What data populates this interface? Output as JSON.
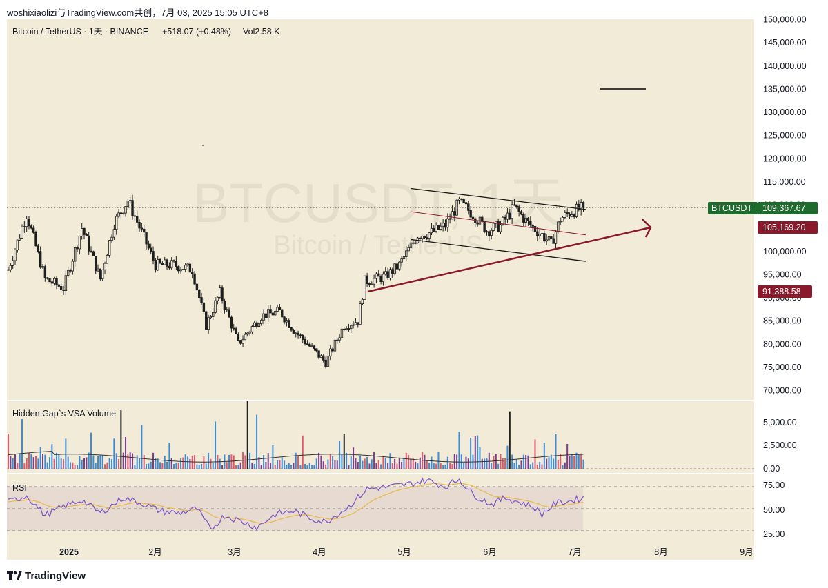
{
  "header": {
    "text": "woshixiaolizi与TradingView.com共创，7月 03, 2025 15:05 UTC+8"
  },
  "legend": {
    "symbol": "Bitcoin / TetherUS · 1天 · BINANCE",
    "change": "+518.07 (+0.48%)",
    "volume": "Vol2.58 K"
  },
  "watermark": {
    "line1": "BTCUSDT, 1天",
    "line2": "Bitcoin / TetherUS"
  },
  "price_tags": {
    "symbol_label": "BTCUSDT",
    "last_price": "109,367.67",
    "upper_level": "105,169.20",
    "lower_level": "91,388.58"
  },
  "volume_panel": {
    "title": "Hidden Gap`s VSA Volume",
    "ticks": [
      "5,000.00",
      "2,500.00",
      "0.00"
    ]
  },
  "rsi_panel": {
    "title": "RSI",
    "ticks": [
      "75.00",
      "50.00",
      "25.00"
    ]
  },
  "footer": {
    "brand": "TradingView"
  },
  "colors": {
    "background": "#f2ebd8",
    "bull": "#1f1f1f",
    "bear": "#1f1f1f",
    "trend_red": "#8a1a2b",
    "channel_black": "#1a1a1a",
    "last_price_tag": "#1e6b2e",
    "level_tag": "#8a1a2b",
    "rsi_line": "#7e57c2",
    "rsi_ma": "#e8b84a",
    "volume_blue": "#3d8bd4",
    "volume_red": "#e0566a",
    "volume_purple": "#7a3d8c"
  },
  "chart_data": {
    "type": "candlestick",
    "title": "Bitcoin / TetherUS · 1天 · BINANCE",
    "y_ticks": [
      "150,000.00",
      "145,000.00",
      "140,000.00",
      "135,000.00",
      "130,000.00",
      "125,000.00",
      "120,000.00",
      "115,000.00",
      "110,000.00",
      "105,000.00",
      "100,000.00",
      "95,000.00",
      "90,000.00",
      "85,000.00",
      "80,000.00",
      "75,000.00",
      "70,000.00"
    ],
    "x_ticks": [
      "2025",
      "2月",
      "3月",
      "4月",
      "5月",
      "6月",
      "7月",
      "8月",
      "9月"
    ],
    "ylim": [
      70000,
      150000
    ],
    "x_range_days": [
      0,
      265
    ],
    "key_points": [
      {
        "day": 0,
        "close": 96000
      },
      {
        "day": 8,
        "close": 108000
      },
      {
        "day": 16,
        "close": 94000
      },
      {
        "day": 24,
        "close": 92000
      },
      {
        "day": 32,
        "close": 105000
      },
      {
        "day": 40,
        "close": 94000
      },
      {
        "day": 46,
        "close": 106000
      },
      {
        "day": 52,
        "close": 111000
      },
      {
        "day": 58,
        "close": 104000
      },
      {
        "day": 64,
        "close": 97000
      },
      {
        "day": 72,
        "close": 97000
      },
      {
        "day": 80,
        "close": 96000
      },
      {
        "day": 86,
        "close": 84000
      },
      {
        "day": 92,
        "close": 91000
      },
      {
        "day": 100,
        "close": 80000
      },
      {
        "day": 110,
        "close": 86000
      },
      {
        "day": 118,
        "close": 87000
      },
      {
        "day": 124,
        "close": 83000
      },
      {
        "day": 134,
        "close": 78000
      },
      {
        "day": 138,
        "close": 76000
      },
      {
        "day": 146,
        "close": 84000
      },
      {
        "day": 152,
        "close": 85000
      },
      {
        "day": 155,
        "close": 93500
      },
      {
        "day": 164,
        "close": 94500
      },
      {
        "day": 170,
        "close": 97000
      },
      {
        "day": 178,
        "close": 103500
      },
      {
        "day": 184,
        "close": 104000
      },
      {
        "day": 190,
        "close": 105500
      },
      {
        "day": 196,
        "close": 110500
      },
      {
        "day": 202,
        "close": 108000
      },
      {
        "day": 208,
        "close": 104500
      },
      {
        "day": 214,
        "close": 105500
      },
      {
        "day": 220,
        "close": 109500
      },
      {
        "day": 226,
        "close": 106000
      },
      {
        "day": 232,
        "close": 103500
      },
      {
        "day": 236,
        "close": 101500
      },
      {
        "day": 240,
        "close": 107000
      },
      {
        "day": 245,
        "close": 108500
      },
      {
        "day": 250,
        "close": 109367.67
      }
    ],
    "annotations": {
      "last_price": 109367.67,
      "levels": [
        105169.2,
        91388.58
      ],
      "target_line": 135000,
      "uptrend_arrow": {
        "from": {
          "day": 156,
          "price": 92000
        },
        "to": {
          "day": 270,
          "price": 105200
        }
      },
      "channel_top": {
        "from": {
          "day": 175,
          "price": 113500
        },
        "to": {
          "day": 251,
          "price": 109000
        }
      },
      "channel_mid": {
        "from": {
          "day": 175,
          "price": 108500
        },
        "to": {
          "day": 251,
          "price": 103500
        }
      },
      "channel_bottom": {
        "from": {
          "day": 175,
          "price": 102500
        },
        "to": {
          "day": 251,
          "price": 97800
        }
      }
    },
    "volume_ylim": [
      0,
      6000
    ],
    "volume_spikes": [
      {
        "day": 6,
        "value": 4400
      },
      {
        "day": 49,
        "value": 5200
      },
      {
        "day": 58,
        "value": 3900
      },
      {
        "day": 90,
        "value": 4200
      },
      {
        "day": 104,
        "value": 6000
      },
      {
        "day": 108,
        "value": 4800
      },
      {
        "day": 146,
        "value": 3100
      },
      {
        "day": 218,
        "value": 5100
      }
    ],
    "rsi_ylim": [
      20,
      80
    ],
    "rsi_levels": [
      70,
      50,
      30
    ],
    "rsi_points": [
      {
        "day": 0,
        "v": 56
      },
      {
        "day": 8,
        "v": 62
      },
      {
        "day": 16,
        "v": 44
      },
      {
        "day": 24,
        "v": 52
      },
      {
        "day": 32,
        "v": 58
      },
      {
        "day": 40,
        "v": 46
      },
      {
        "day": 50,
        "v": 60
      },
      {
        "day": 58,
        "v": 55
      },
      {
        "day": 66,
        "v": 48
      },
      {
        "day": 74,
        "v": 46
      },
      {
        "day": 82,
        "v": 50
      },
      {
        "day": 88,
        "v": 31
      },
      {
        "day": 94,
        "v": 44
      },
      {
        "day": 102,
        "v": 38
      },
      {
        "day": 108,
        "v": 33
      },
      {
        "day": 116,
        "v": 45
      },
      {
        "day": 124,
        "v": 48
      },
      {
        "day": 132,
        "v": 41
      },
      {
        "day": 138,
        "v": 38
      },
      {
        "day": 148,
        "v": 52
      },
      {
        "day": 156,
        "v": 68
      },
      {
        "day": 166,
        "v": 70
      },
      {
        "day": 176,
        "v": 73
      },
      {
        "day": 182,
        "v": 76
      },
      {
        "day": 190,
        "v": 70
      },
      {
        "day": 196,
        "v": 77
      },
      {
        "day": 202,
        "v": 63
      },
      {
        "day": 210,
        "v": 54
      },
      {
        "day": 216,
        "v": 60
      },
      {
        "day": 222,
        "v": 56
      },
      {
        "day": 228,
        "v": 52
      },
      {
        "day": 232,
        "v": 45
      },
      {
        "day": 238,
        "v": 55
      },
      {
        "day": 244,
        "v": 57
      },
      {
        "day": 250,
        "v": 60
      }
    ]
  }
}
